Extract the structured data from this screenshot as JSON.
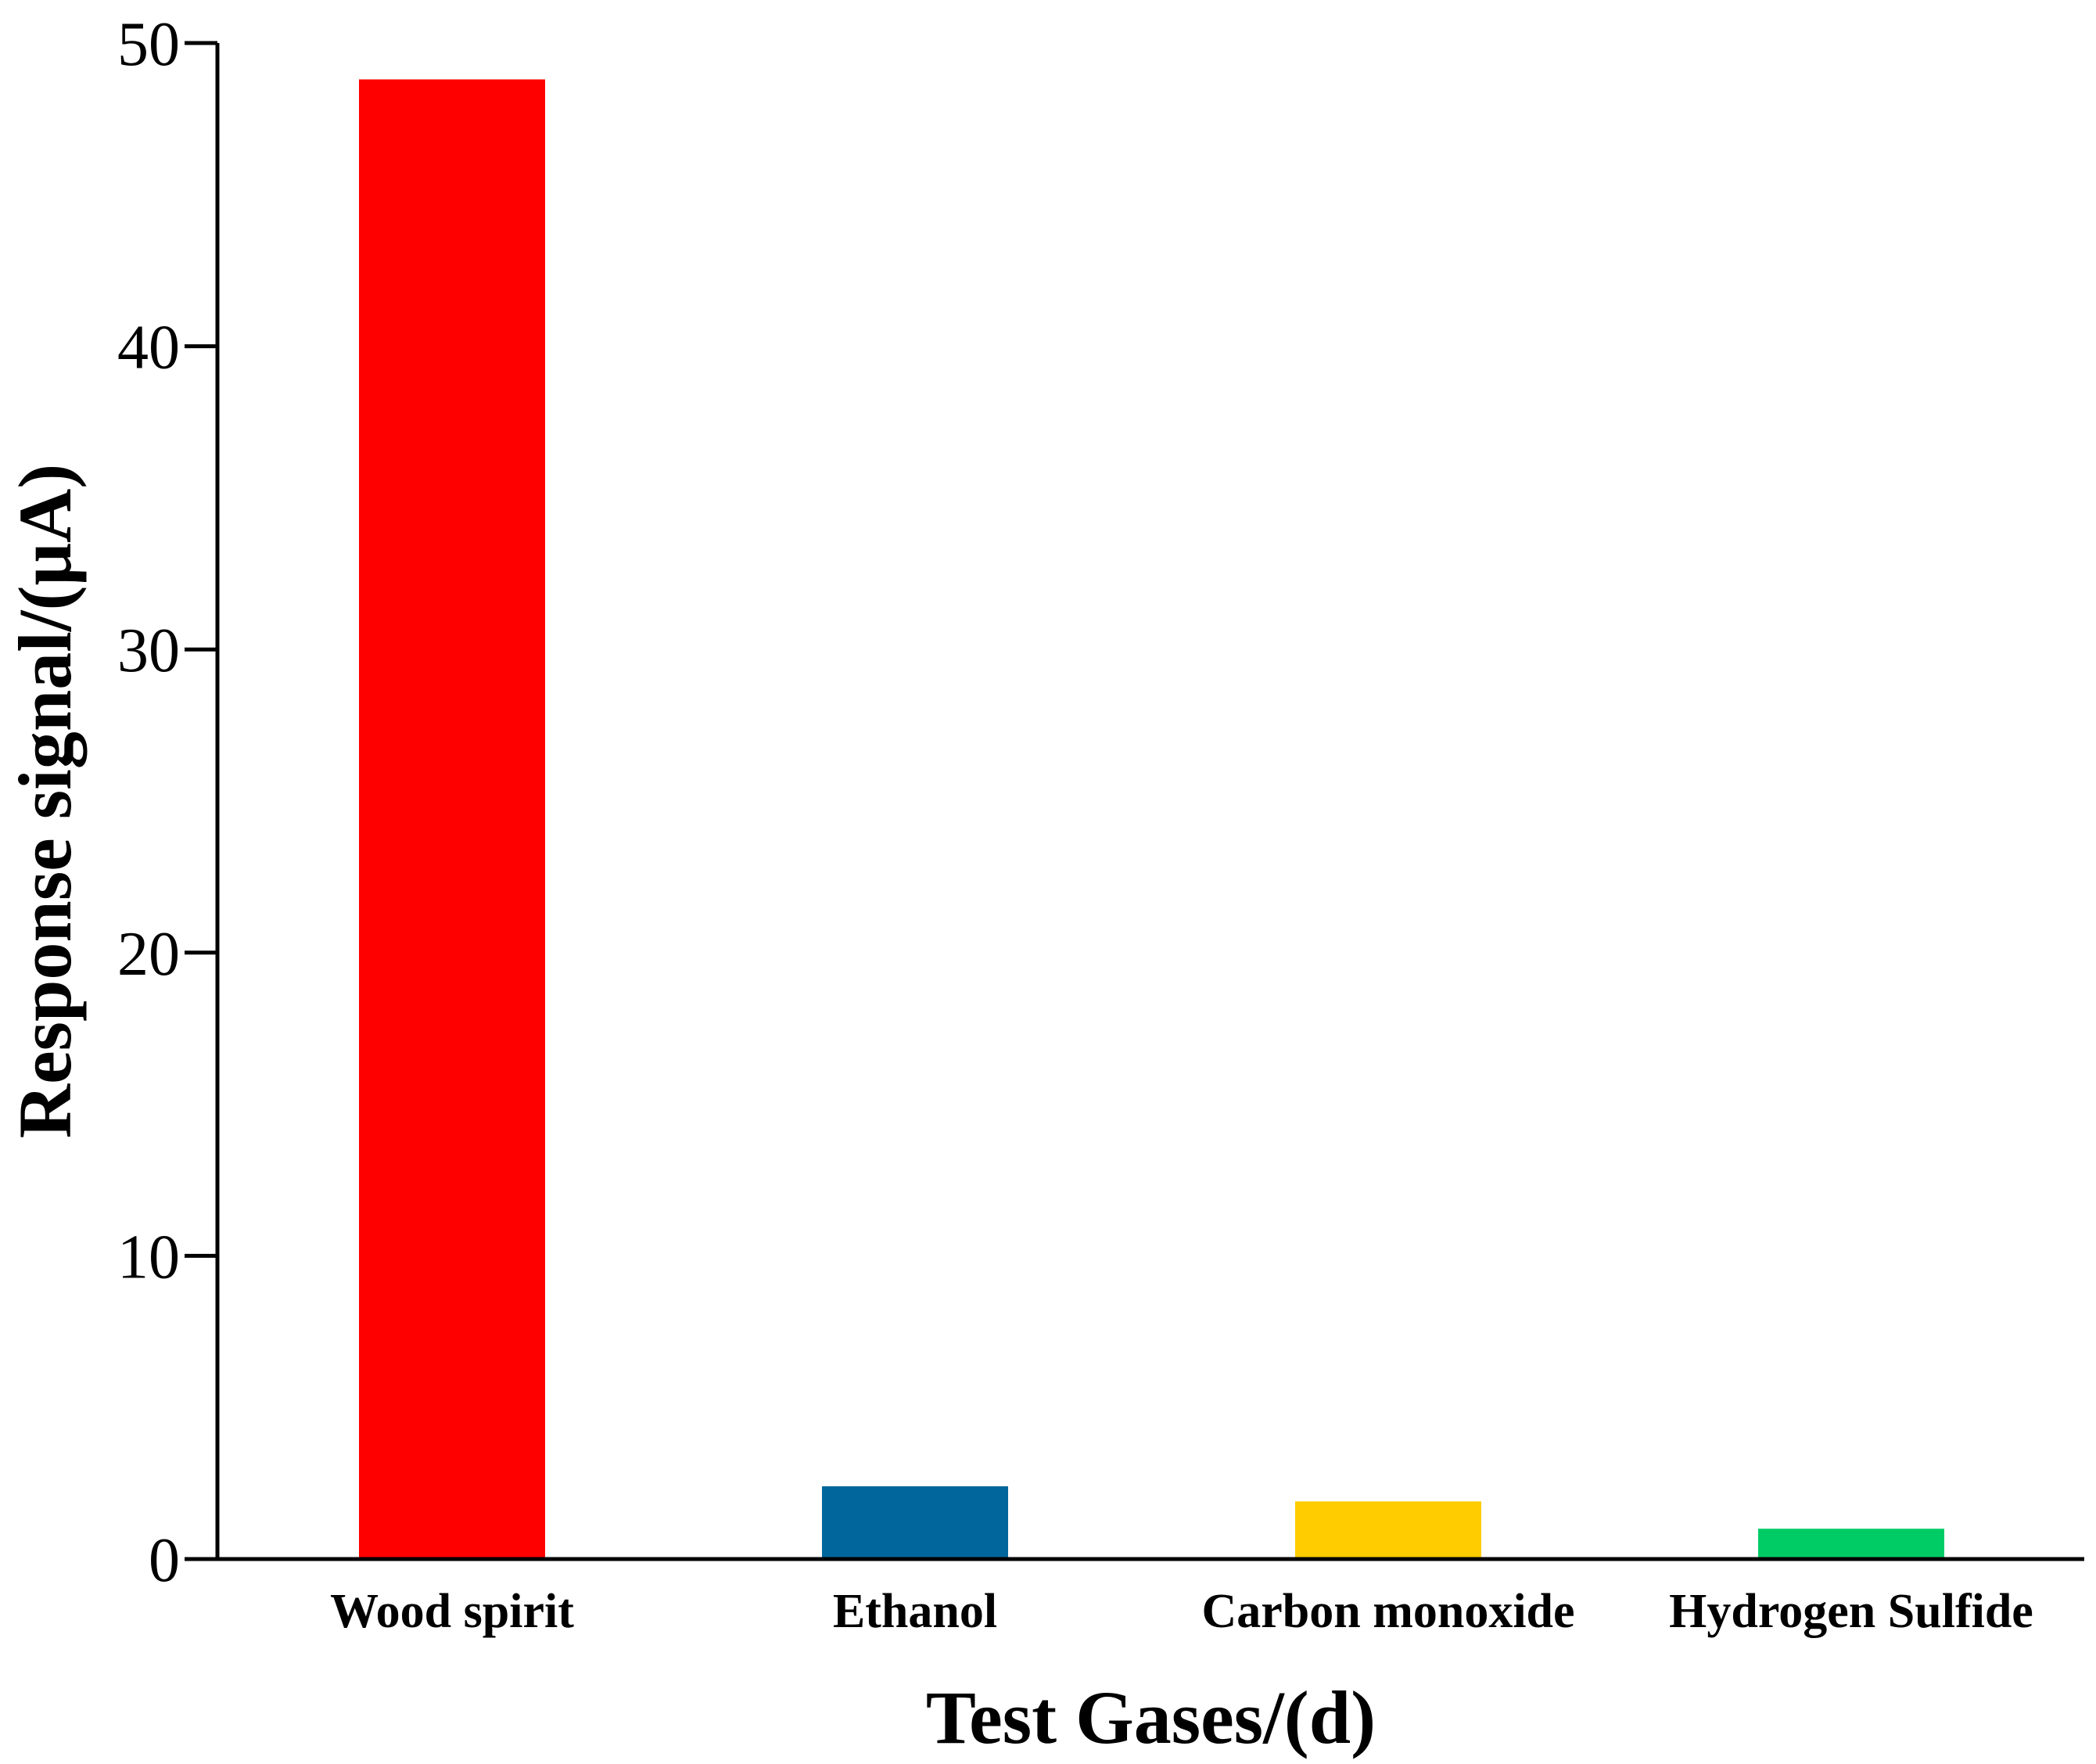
{
  "chart_data": {
    "type": "bar",
    "categories": [
      "Wood spirit",
      "Ethanol",
      "Carbon monoxide",
      "Hydrogen Sulfide"
    ],
    "values": [
      48.8,
      2.4,
      1.9,
      1.0
    ],
    "colors": [
      "#ff0000",
      "#00669b",
      "#ffcc00",
      "#00cc66"
    ],
    "xlabel": "Test Gases/(d)",
    "ylabel": "Response signal/(μA)",
    "ylim": [
      0,
      50
    ],
    "yticks": [
      0,
      10,
      20,
      30,
      40,
      50
    ],
    "ytick_labels": [
      "0",
      "10",
      "20",
      "30",
      "40",
      "50"
    ],
    "grid": false,
    "legend": "none"
  }
}
